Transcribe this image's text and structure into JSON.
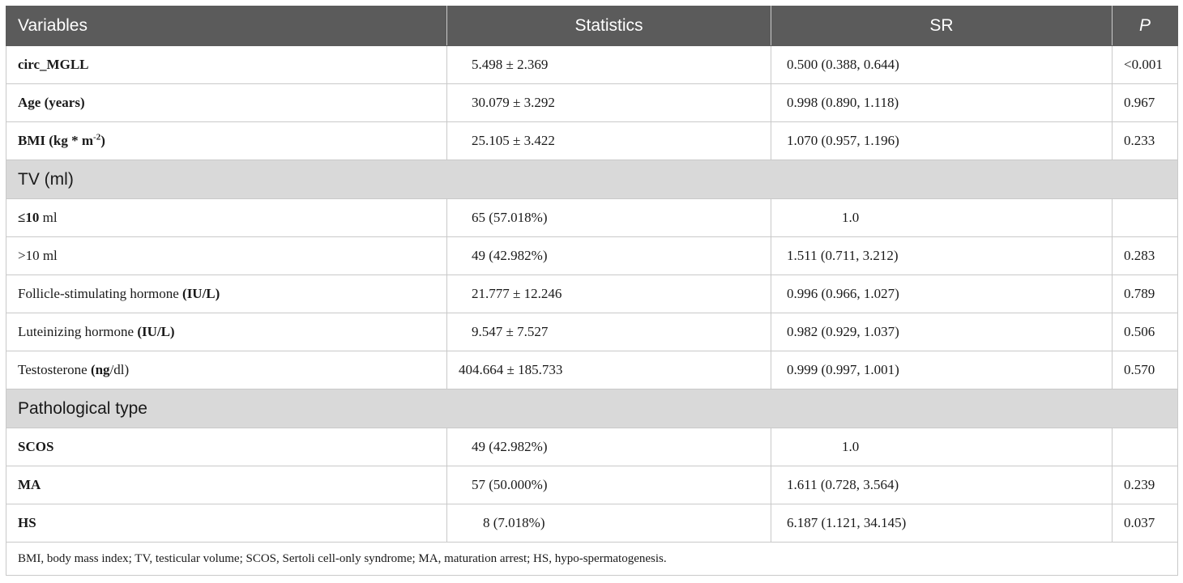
{
  "table": {
    "headers": {
      "variables": "Variables",
      "statistics": "Statistics",
      "sr": "SR",
      "p": "P"
    },
    "rows": {
      "circ_mgll": {
        "var": "circ_MGLL",
        "stat": "5.498 ± 2.369",
        "sr": "0.500 (0.388, 0.644)",
        "p": "<0.001"
      },
      "age": {
        "var": "Age (years)",
        "stat": "30.079 ± 3.292",
        "sr": "0.998 (0.890, 1.118)",
        "p": "0.967"
      },
      "bmi": {
        "var_prefix": "BMI (kg * m",
        "var_sup": "-2",
        "var_suffix": ")",
        "stat": "25.105 ± 3.422",
        "sr": "1.070 (0.957, 1.196)",
        "p": "0.233"
      },
      "tv_group": "TV (ml)",
      "tv_le10": {
        "var_bold": "≤10",
        "var_rest": " ml",
        "stat": "65 (57.018%)",
        "sr": "1.0",
        "p": ""
      },
      "tv_gt10": {
        "var": ">10 ml",
        "stat": "49 (42.982%)",
        "sr": "1.511 (0.711, 3.212)",
        "p": "0.283"
      },
      "fsh": {
        "var_plain": "Follicle-stimulating hormone ",
        "var_bold": "(IU/L)",
        "stat": "21.777 ± 12.246",
        "sr": "0.996 (0.966, 1.027)",
        "p": "0.789"
      },
      "lh": {
        "var_plain": "Luteinizing hormone ",
        "var_bold": "(IU/L)",
        "stat": "9.547 ± 7.527",
        "sr": "0.982 (0.929, 1.037)",
        "p": "0.506"
      },
      "testosterone": {
        "var_plain": "Testosterone ",
        "var_bold": "(ng",
        "var_tail": "/dl)",
        "stat": "404.664 ± 185.733",
        "sr": "0.999 (0.997, 1.001)",
        "p": "0.570"
      },
      "path_group": "Pathological type",
      "scos": {
        "var": "SCOS",
        "stat": "49 (42.982%)",
        "sr": "1.0",
        "p": ""
      },
      "ma": {
        "var": "MA",
        "stat": "57 (50.000%)",
        "sr": "1.611 (0.728, 3.564)",
        "p": "0.239"
      },
      "hs": {
        "var": "HS",
        "stat": "8 (7.018%)",
        "sr": "6.187 (1.121, 34.145)",
        "p": "0.037"
      }
    },
    "footnote": "BMI, body mass index; TV, testicular volume; SCOS, Sertoli cell-only syndrome; MA, maturation arrest; HS, hypo-spermatogenesis."
  }
}
